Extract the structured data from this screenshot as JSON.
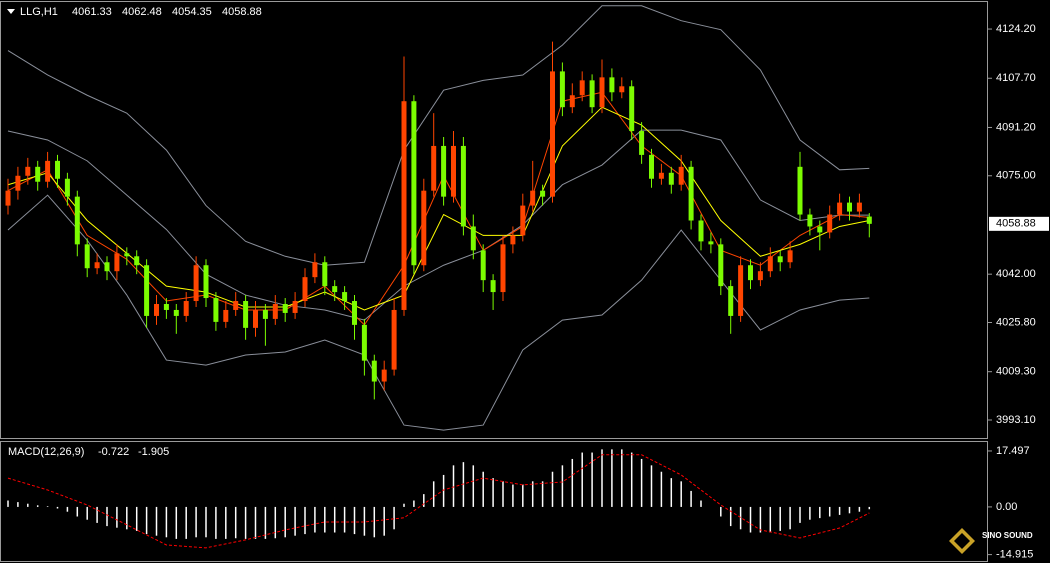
{
  "chart_data": [
    {
      "type": "candlestick",
      "title": "LLG,H1",
      "up_color": "#ff4500",
      "down_color": "#7cfc00",
      "band_color": "#8a8f9a",
      "ylim": [
        3987.4,
        4132.6
      ],
      "yticks": [
        {
          "value": 4124.2,
          "label": "4124.20"
        },
        {
          "value": 4107.7,
          "label": "4107.70"
        },
        {
          "value": 4091.2,
          "label": "4091.20"
        },
        {
          "value": 4075,
          "label": "4075.00"
        },
        {
          "value": 4042,
          "label": "4042.00"
        },
        {
          "value": 4025.8,
          "label": "4025.80"
        },
        {
          "value": 4009.3,
          "label": "4009.30"
        },
        {
          "value": 3993.1,
          "label": "3993.10"
        }
      ],
      "ohlc": [
        [
          4065,
          4074,
          4062,
          4070
        ],
        [
          4070,
          4078,
          4067,
          4075
        ],
        [
          4075,
          4081,
          4072,
          4078
        ],
        [
          4078,
          4080,
          4070,
          4073
        ],
        [
          4073,
          4083,
          4071,
          4080
        ],
        [
          4080,
          4082,
          4071,
          4074
        ],
        [
          4074,
          4076,
          4065,
          4068
        ],
        [
          4068,
          4070,
          4048,
          4052
        ],
        [
          4052,
          4054,
          4041,
          4044
        ],
        [
          4044,
          4049,
          4042,
          4046
        ],
        [
          4046,
          4048,
          4040,
          4043
        ],
        [
          4043,
          4052,
          4040,
          4049
        ],
        [
          4049,
          4051,
          4045,
          4048
        ],
        [
          4048,
          4050,
          4042,
          4045
        ],
        [
          4045,
          4047,
          4024,
          4028
        ],
        [
          4028,
          4035,
          4025,
          4032
        ],
        [
          4032,
          4034,
          4027,
          4030
        ],
        [
          4030,
          4032,
          4022,
          4028
        ],
        [
          4028,
          4036,
          4026,
          4033
        ],
        [
          4033,
          4048,
          4031,
          4045
        ],
        [
          4045,
          4047,
          4031,
          4034
        ],
        [
          4034,
          4036,
          4023,
          4026
        ],
        [
          4026,
          4033,
          4024,
          4030
        ],
        [
          4030,
          4036,
          4028,
          4033
        ],
        [
          4033,
          4035,
          4020,
          4024
        ],
        [
          4024,
          4033,
          4021,
          4030
        ],
        [
          4030,
          4032,
          4018,
          4027
        ],
        [
          4027,
          4035,
          4025,
          4032
        ],
        [
          4032,
          4034,
          4026,
          4029
        ],
        [
          4029,
          4036,
          4027,
          4033
        ],
        [
          4033,
          4044,
          4031,
          4041
        ],
        [
          4041,
          4049,
          4039,
          4046
        ],
        [
          4046,
          4048,
          4035,
          4038
        ],
        [
          4038,
          4040,
          4033,
          4036
        ],
        [
          4036,
          4038,
          4030,
          4033
        ],
        [
          4033,
          4035,
          4020,
          4025
        ],
        [
          4025,
          4027,
          4008,
          4013
        ],
        [
          4013,
          4015,
          4000,
          4006
        ],
        [
          4006,
          4013,
          4003,
          4010
        ],
        [
          4010,
          4034,
          4008,
          4030
        ],
        [
          4030,
          4115,
          4028,
          4100
        ],
        [
          4100,
          4102,
          4042,
          4045
        ],
        [
          4045,
          4074,
          4043,
          4070
        ],
        [
          4070,
          4096,
          4068,
          4085
        ],
        [
          4085,
          4088,
          4065,
          4068
        ],
        [
          4068,
          4090,
          4066,
          4085
        ],
        [
          4085,
          4088,
          4055,
          4058
        ],
        [
          4058,
          4062,
          4047,
          4050
        ],
        [
          4050,
          4052,
          4036,
          4040
        ],
        [
          4040,
          4042,
          4030,
          4036
        ],
        [
          4036,
          4055,
          4033,
          4052
        ],
        [
          4052,
          4058,
          4049,
          4055
        ],
        [
          4055,
          4069,
          4053,
          4065
        ],
        [
          4065,
          4080,
          4063,
          4070
        ],
        [
          4070,
          4072,
          4065,
          4068
        ],
        [
          4068,
          4120,
          4066,
          4110
        ],
        [
          4110,
          4113,
          4095,
          4098
        ],
        [
          4098,
          4106,
          4096,
          4102
        ],
        [
          4102,
          4110,
          4100,
          4107
        ],
        [
          4107,
          4109,
          4096,
          4098
        ],
        [
          4098,
          4114,
          4096,
          4108
        ],
        [
          4108,
          4111,
          4100,
          4103
        ],
        [
          4103,
          4108,
          4101,
          4105
        ],
        [
          4105,
          4107,
          4087,
          4090
        ],
        [
          4090,
          4093,
          4079,
          4082
        ],
        [
          4082,
          4084,
          4071,
          4074
        ],
        [
          4074,
          4079,
          4072,
          4076
        ],
        [
          4076,
          4078,
          4069,
          4072
        ],
        [
          4072,
          4082,
          4070,
          4078
        ],
        [
          4078,
          4080,
          4057,
          4060
        ],
        [
          4060,
          4062,
          4050,
          4053
        ],
        [
          4053,
          4056,
          4049,
          4052
        ],
        [
          4052,
          4054,
          4035,
          4038
        ],
        [
          4038,
          4040,
          4022,
          4028
        ],
        [
          4028,
          4048,
          4026,
          4045
        ],
        [
          4045,
          4047,
          4037,
          4040
        ],
        [
          4040,
          4046,
          4038,
          4043
        ],
        [
          4043,
          4051,
          4041,
          4048
        ],
        [
          4048,
          4050,
          4043,
          4046
        ],
        [
          4046,
          4053,
          4044,
          4050
        ],
        [
          4078,
          4083,
          4060,
          4062
        ],
        [
          4062,
          4064,
          4055,
          4058
        ],
        [
          4058,
          4060,
          4050,
          4056
        ],
        [
          4056,
          4065,
          4054,
          4062
        ],
        [
          4062,
          4069,
          4060,
          4066
        ],
        [
          4066,
          4068,
          4060,
          4063
        ],
        [
          4063,
          4069,
          4061,
          4066
        ],
        [
          4061.33,
          4062.48,
          4054.35,
          4058.88
        ]
      ],
      "line_x": [
        0,
        4,
        8,
        12,
        16,
        20,
        24,
        28,
        32,
        36,
        40,
        44,
        48,
        52,
        56,
        60,
        64,
        68,
        72,
        76,
        80,
        84,
        87
      ],
      "lines": [
        {
          "color": "#8a8f9a",
          "values": [
            4117,
            4108.8,
            4102,
            4096,
            4083.6,
            4065,
            4053,
            4048,
            4045,
            4046,
            4083.6,
            4103.7,
            4107,
            4108.8,
            4118.8,
            4132,
            4132,
            4127,
            4124,
            4110.5,
            4087,
            4077,
            4077.5
          ]
        },
        {
          "color": "#8a8f9a",
          "values": [
            4090,
            4087,
            4080,
            4068.5,
            4057,
            4042,
            4035,
            4031.6,
            4030,
            4026.6,
            4038,
            4045,
            4050,
            4058.5,
            4072,
            4078.6,
            4090.3,
            4090.3,
            4087,
            4066.9,
            4060,
            4061.8,
            4061.8
          ]
        },
        {
          "color": "#8a8f9a",
          "values": [
            4056.8,
            4068.5,
            4053.4,
            4035,
            4013.2,
            4011.5,
            4014.9,
            4015.9,
            4019.9,
            4014.9,
            3991.4,
            3989.7,
            3991.4,
            4016.6,
            4026.6,
            4028.3,
            4040,
            4056.8,
            4040,
            4023.3,
            4030,
            4033.3,
            4034
          ]
        },
        {
          "color": "#ff4500",
          "values": [
            4070,
            4077,
            4055,
            4047,
            4033,
            4035,
            4030,
            4030,
            4038,
            4025,
            4045,
            4075,
            4050,
            4058,
            4100,
            4103,
            4085,
            4075,
            4050,
            4045,
            4055,
            4062,
            4061
          ]
        },
        {
          "color": "#ffff00",
          "values": [
            4072,
            4076,
            4060,
            4049,
            4038,
            4036,
            4031,
            4031,
            4036,
            4030,
            4035,
            4062,
            4055,
            4055,
            4085,
            4098,
            4092,
            4080,
            4060,
            4048,
            4052,
            4058,
            4060
          ]
        }
      ]
    },
    {
      "type": "macd",
      "title": "MACD(12,26,9)",
      "hist_color": "#ffffff",
      "ylim": [
        -16.6,
        20.3
      ],
      "yticks": [
        17.497,
        {
          "value": 0,
          "label": "0.00"
        },
        -14.915
      ],
      "histogram": [
        2,
        1.5,
        1,
        0.5,
        0.2,
        -0.5,
        -1.5,
        -3,
        -4,
        -5,
        -6,
        -6.5,
        -7,
        -7.5,
        -8.5,
        -9,
        -9.5,
        -10,
        -10,
        -9.5,
        -9.5,
        -10,
        -10,
        -9.8,
        -10,
        -10,
        -10,
        -9.8,
        -9.5,
        -9,
        -8.5,
        -8,
        -8,
        -8,
        -8,
        -8.5,
        -9,
        -9.5,
        -9,
        -7,
        1,
        2,
        4,
        8,
        10,
        13,
        14,
        13,
        11,
        9,
        8,
        7,
        7,
        8,
        8,
        11,
        13,
        15,
        17,
        17,
        18,
        18,
        18,
        17,
        15,
        13,
        11,
        9,
        8,
        5,
        2,
        0,
        -3,
        -6,
        -7,
        -8,
        -8,
        -8,
        -7.5,
        -7,
        -5,
        -4,
        -3.5,
        -3,
        -2.5,
        -2,
        -1.5,
        -0.722
      ],
      "signal": {
        "color": "#ff0000",
        "x": [
          0,
          4,
          8,
          12,
          16,
          20,
          24,
          28,
          32,
          36,
          40,
          44,
          48,
          52,
          56,
          60,
          64,
          68,
          72,
          76,
          80,
          84,
          87
        ],
        "values": [
          9,
          5.3,
          0.6,
          -5.6,
          -11.9,
          -12.8,
          -10.3,
          -7.2,
          -4.7,
          -4.7,
          -3.4,
          5.3,
          9,
          6.9,
          7.8,
          16.3,
          16.3,
          10,
          0.6,
          -7.2,
          -9.7,
          -6.6,
          -1.905
        ]
      }
    }
  ],
  "watermark": "SINO SOUND"
}
